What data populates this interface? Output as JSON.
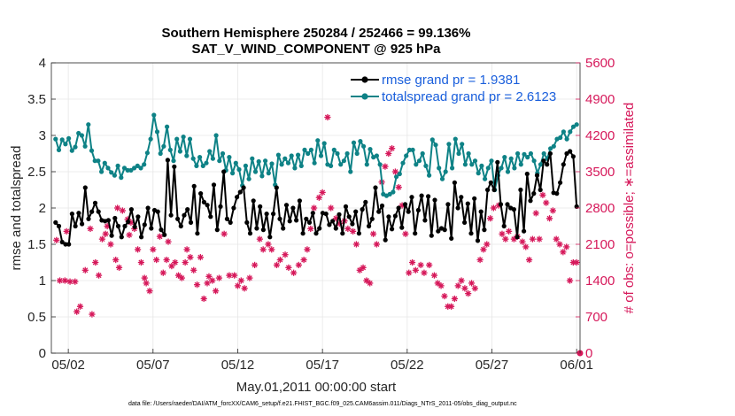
{
  "chart_data": {
    "type": "line",
    "title_line1": "Southern Hemisphere 250284 / 252466 = 99.136%",
    "title_line2": "SAT_V_WIND_COMPONENT @ 925 hPa",
    "xlabel": "May.01,2011 00:00:00 start",
    "ylabel_left": "rmse and totalspread",
    "ylabel_right": "# of obs: o=possible; ∗=assimilated",
    "footnote": "data file: /Users/raeder/DAI/ATM_forcXX/CAM6_setup/f.e21.FHIST_BGC.f09_025.CAM6assim.011/Diags_NTrS_2011-05/obs_diag_output.nc",
    "xlim": [
      0,
      31.2
    ],
    "ylim_left": [
      0,
      4
    ],
    "ylim_right": [
      0,
      5600
    ],
    "x_ticks": [
      {
        "x": 1,
        "label": "05/02"
      },
      {
        "x": 6,
        "label": "05/07"
      },
      {
        "x": 11,
        "label": "05/12"
      },
      {
        "x": 16,
        "label": "05/17"
      },
      {
        "x": 21,
        "label": "05/22"
      },
      {
        "x": 26,
        "label": "05/27"
      },
      {
        "x": 31,
        "label": "06/01"
      }
    ],
    "y_ticks_left": [
      "0",
      "0.5",
      "1",
      "1.5",
      "2",
      "2.5",
      "3",
      "3.5",
      "4"
    ],
    "y_ticks_right": [
      "0",
      "700",
      "1400",
      "2100",
      "2800",
      "3500",
      "4200",
      "4900",
      "5600"
    ],
    "grid": true,
    "legend_position": "top-right",
    "series": [
      {
        "name": "rmse grand pr = 1.9381",
        "color": "#000000",
        "axis": "left",
        "values": [
          1.8,
          1.75,
          1.53,
          1.5,
          1.5,
          1.92,
          1.75,
          1.93,
          1.78,
          2.28,
          1.85,
          1.95,
          2.07,
          1.95,
          1.83,
          1.82,
          1.83,
          1.62,
          1.86,
          1.75,
          1.6,
          1.75,
          1.81,
          1.98,
          1.74,
          1.88,
          1.6,
          1.77,
          2.0,
          1.72,
          1.97,
          1.95,
          1.7,
          1.63,
          2.66,
          1.9,
          2.57,
          1.85,
          1.75,
          1.9,
          1.98,
          1.8,
          2.3,
          1.65,
          2.2,
          2.08,
          2.04,
          1.88,
          2.32,
          1.7,
          2.02,
          2.5,
          1.85,
          1.8,
          2.0,
          2.15,
          2.22,
          2.28,
          1.8,
          1.65,
          2.1,
          1.72,
          2.02,
          1.7,
          1.92,
          1.6,
          1.92,
          2.28,
          1.85,
          1.72,
          2.04,
          1.82,
          2.0,
          1.83,
          2.1,
          1.65,
          1.85,
          1.8,
          1.93,
          1.65,
          1.72,
          1.93,
          1.92,
          1.77,
          1.82,
          1.72,
          1.91,
          1.65,
          2.02,
          1.88,
          1.78,
          1.95,
          1.65,
          1.98,
          2.08,
          1.75,
          1.85,
          2.28,
          1.95,
          2.03,
          1.56,
          1.88,
          1.71,
          1.89,
          2.0,
          1.73,
          2.05,
          1.95,
          2.15,
          1.65,
          1.97,
          2.17,
          1.83,
          2.16,
          1.62,
          2.11,
          1.68,
          1.72,
          1.7,
          2.05,
          1.58,
          2.35,
          2.0,
          2.15,
          1.8,
          2.06,
          1.65,
          2.13,
          1.55,
          1.95,
          1.7,
          2.25,
          2.35,
          2.25,
          2.63,
          2.05,
          1.75,
          2.05,
          2.0,
          1.98,
          1.6,
          2.25,
          1.68,
          2.47,
          2.1,
          2.2,
          2.45,
          2.25,
          2.65,
          2.6,
          2.75,
          2.21,
          2.2,
          2.35,
          2.6,
          2.75,
          2.78,
          2.71,
          2.02
        ]
      },
      {
        "name": "totalspread grand pr = 2.6123",
        "color": "#0e8286",
        "axis": "left",
        "values": [
          2.95,
          2.8,
          2.94,
          2.88,
          2.96,
          2.79,
          2.84,
          3.03,
          3.0,
          2.85,
          3.15,
          2.79,
          2.65,
          2.65,
          2.5,
          2.62,
          2.55,
          2.49,
          2.45,
          2.58,
          2.42,
          2.55,
          2.52,
          2.52,
          2.55,
          2.58,
          2.55,
          2.6,
          2.76,
          2.95,
          3.28,
          3.05,
          2.75,
          2.85,
          3.12,
          2.8,
          2.65,
          2.95,
          2.78,
          2.98,
          2.72,
          2.95,
          2.68,
          2.58,
          2.7,
          2.58,
          2.62,
          2.78,
          2.68,
          3.0,
          2.65,
          2.75,
          2.52,
          2.7,
          2.48,
          2.62,
          2.53,
          2.31,
          2.58,
          2.4,
          2.68,
          2.5,
          2.64,
          2.44,
          2.65,
          2.48,
          2.61,
          2.32,
          2.73,
          2.6,
          2.68,
          2.62,
          2.72,
          2.55,
          2.73,
          2.58,
          2.8,
          2.75,
          2.8,
          2.62,
          2.93,
          2.72,
          2.89,
          2.6,
          2.58,
          2.8,
          2.75,
          2.6,
          2.65,
          2.75,
          2.5,
          2.9,
          2.75,
          2.92,
          2.85,
          2.6,
          2.81,
          2.7,
          2.72,
          2.6,
          2.19,
          2.17,
          2.19,
          2.22,
          2.43,
          2.47,
          2.62,
          2.72,
          2.8,
          2.8,
          2.6,
          2.65,
          2.75,
          2.58,
          2.45,
          2.94,
          2.87,
          2.55,
          2.4,
          2.5,
          2.88,
          2.55,
          2.95,
          2.75,
          2.88,
          2.6,
          2.75,
          2.6,
          2.65,
          2.48,
          2.58,
          2.4,
          2.55,
          2.65,
          2.25,
          2.45,
          2.55,
          2.7,
          2.5,
          2.68,
          2.55,
          2.75,
          2.6,
          2.74,
          2.7,
          2.75,
          2.65,
          2.48,
          2.6,
          2.75,
          2.68,
          2.82,
          2.85,
          2.95,
          2.97,
          3.05,
          2.95,
          3.05,
          3.12,
          3.15
        ]
      }
    ],
    "obs_assimilated": {
      "marker": "*",
      "color": "#d6185a",
      "axis": "right",
      "points": [
        [
          0.3,
          2180
        ],
        [
          0.5,
          1400
        ],
        [
          0.8,
          1400
        ],
        [
          1.1,
          1380
        ],
        [
          1.4,
          1380
        ],
        [
          0.9,
          2350
        ],
        [
          1.5,
          800
        ],
        [
          1.7,
          900
        ],
        [
          2.0,
          1600
        ],
        [
          2.3,
          2400
        ],
        [
          2.6,
          1750
        ],
        [
          2.4,
          750
        ],
        [
          2.8,
          1500
        ],
        [
          3.0,
          2200
        ],
        [
          3.2,
          2300
        ],
        [
          3.3,
          2450
        ],
        [
          3.5,
          2100
        ],
        [
          3.8,
          1800
        ],
        [
          4.0,
          1650
        ],
        [
          3.9,
          2800
        ],
        [
          4.2,
          2750
        ],
        [
          4.5,
          2580
        ],
        [
          4.7,
          2520
        ],
        [
          4.6,
          2280
        ],
        [
          4.9,
          2400
        ],
        [
          5.1,
          2000
        ],
        [
          5.3,
          1750
        ],
        [
          5.5,
          1450
        ],
        [
          5.6,
          1350
        ],
        [
          5.8,
          1200
        ],
        [
          6.0,
          2000
        ],
        [
          6.2,
          1800
        ],
        [
          6.4,
          2250
        ],
        [
          6.6,
          1550
        ],
        [
          6.8,
          1800
        ],
        [
          6.9,
          2150
        ],
        [
          7.1,
          1680
        ],
        [
          7.3,
          1750
        ],
        [
          7.5,
          1500
        ],
        [
          7.7,
          1450
        ],
        [
          7.9,
          1750
        ],
        [
          8.0,
          2000
        ],
        [
          8.2,
          1850
        ],
        [
          8.4,
          1600
        ],
        [
          8.6,
          1320
        ],
        [
          8.8,
          1850
        ],
        [
          9.0,
          1050
        ],
        [
          9.2,
          1350
        ],
        [
          9.3,
          1480
        ],
        [
          9.5,
          1400
        ],
        [
          9.7,
          1200
        ],
        [
          9.9,
          1450
        ],
        [
          10.2,
          2300
        ],
        [
          10.5,
          1500
        ],
        [
          10.8,
          1500
        ],
        [
          11.0,
          1300
        ],
        [
          11.2,
          1400
        ],
        [
          11.4,
          1250
        ],
        [
          11.7,
          1450
        ],
        [
          12.0,
          1700
        ],
        [
          12.3,
          2200
        ],
        [
          12.5,
          2000
        ],
        [
          12.8,
          2100
        ],
        [
          13.0,
          2000
        ],
        [
          13.3,
          1700
        ],
        [
          13.5,
          1800
        ],
        [
          13.8,
          1900
        ],
        [
          14.0,
          1650
        ],
        [
          14.3,
          1550
        ],
        [
          14.6,
          1700
        ],
        [
          14.9,
          1800
        ],
        [
          15.1,
          2000
        ],
        [
          15.3,
          2400
        ],
        [
          15.5,
          2800
        ],
        [
          15.8,
          3000
        ],
        [
          16.0,
          3100
        ],
        [
          16.3,
          4550
        ],
        [
          16.5,
          2800
        ],
        [
          16.8,
          2600
        ],
        [
          17.0,
          2500
        ],
        [
          17.3,
          2550
        ],
        [
          17.5,
          2400
        ],
        [
          17.8,
          2350
        ],
        [
          18.0,
          2100
        ],
        [
          18.2,
          1600
        ],
        [
          18.4,
          1650
        ],
        [
          18.6,
          1400
        ],
        [
          18.8,
          1350
        ],
        [
          19.0,
          2300
        ],
        [
          19.2,
          2100
        ],
        [
          19.5,
          3300
        ],
        [
          19.7,
          3600
        ],
        [
          19.9,
          3850
        ],
        [
          20.1,
          3950
        ],
        [
          20.3,
          3500
        ],
        [
          20.5,
          3200
        ],
        [
          20.7,
          2850
        ],
        [
          20.9,
          2300
        ],
        [
          21.1,
          1550
        ],
        [
          21.3,
          1750
        ],
        [
          21.5,
          1600
        ],
        [
          21.8,
          1700
        ],
        [
          22.0,
          1550
        ],
        [
          22.3,
          1700
        ],
        [
          22.6,
          1500
        ],
        [
          22.8,
          1350
        ],
        [
          23.0,
          1300
        ],
        [
          23.2,
          1100
        ],
        [
          23.4,
          900
        ],
        [
          23.6,
          900
        ],
        [
          23.8,
          1050
        ],
        [
          24.0,
          1300
        ],
        [
          24.2,
          1400
        ],
        [
          24.4,
          1250
        ],
        [
          24.6,
          1150
        ],
        [
          24.8,
          1350
        ],
        [
          25.0,
          1250
        ],
        [
          25.3,
          1800
        ],
        [
          25.5,
          2000
        ],
        [
          25.7,
          2100
        ],
        [
          25.9,
          2600
        ],
        [
          26.1,
          2800
        ],
        [
          26.4,
          2850
        ],
        [
          26.6,
          2300
        ],
        [
          26.8,
          2200
        ],
        [
          27.0,
          2350
        ],
        [
          27.3,
          2200
        ],
        [
          27.5,
          2250
        ],
        [
          27.8,
          2150
        ],
        [
          28.0,
          2050
        ],
        [
          28.2,
          1800
        ],
        [
          28.4,
          2200
        ],
        [
          28.6,
          2700
        ],
        [
          28.8,
          2200
        ],
        [
          29.0,
          3050
        ],
        [
          29.2,
          2900
        ],
        [
          29.4,
          2600
        ],
        [
          29.6,
          2750
        ],
        [
          29.8,
          2200
        ],
        [
          30.0,
          2100
        ],
        [
          30.2,
          1950
        ],
        [
          30.4,
          2050
        ],
        [
          30.6,
          1400
        ],
        [
          30.8,
          1750
        ],
        [
          31.0,
          1750
        ],
        [
          31.2,
          0
        ]
      ]
    }
  }
}
